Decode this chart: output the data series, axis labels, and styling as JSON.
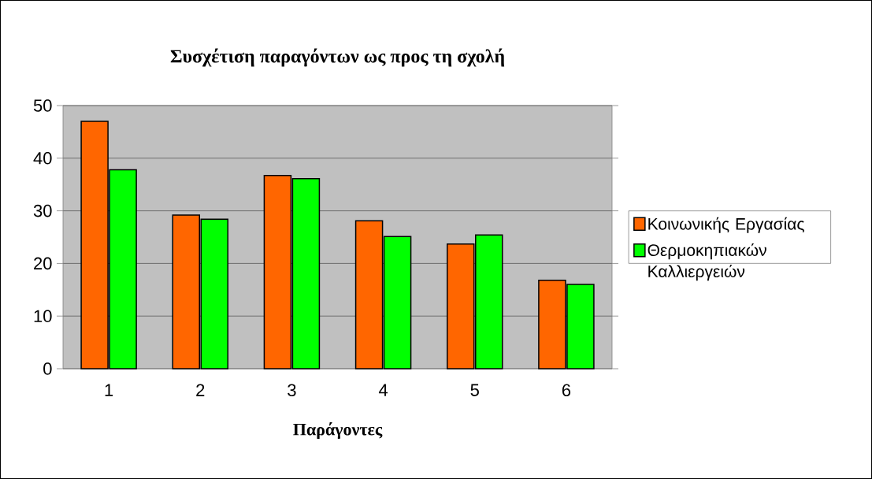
{
  "chart_data": {
    "type": "bar",
    "title": "Συσχέτιση παραγόντων ως προς τη σχολή",
    "xlabel": "Παράγοντες",
    "categories": [
      "1",
      "2",
      "3",
      "4",
      "5",
      "6"
    ],
    "series": [
      {
        "name": "Κοινωνικής Εργασίας",
        "color": "#ff6600",
        "values": [
          47.0,
          29.2,
          36.7,
          28.1,
          23.7,
          16.8
        ]
      },
      {
        "name": "Θερμοκηπιακών Καλλιεργειών",
        "color": "#00ff00",
        "values": [
          37.8,
          28.4,
          36.1,
          25.1,
          25.4,
          16.0
        ]
      }
    ],
    "ylim": [
      0,
      50
    ],
    "yticks": [
      0,
      10,
      20,
      30,
      40,
      50
    ],
    "grid": "y",
    "legend": "right"
  }
}
